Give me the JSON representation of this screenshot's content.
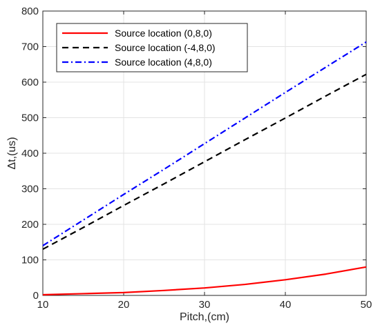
{
  "chart_data": {
    "type": "line",
    "xlabel": "Pitch,(cm)",
    "ylabel": "Δt,(us)",
    "xlim": [
      10,
      50
    ],
    "ylim": [
      0,
      800
    ],
    "xticks": [
      "10",
      "20",
      "30",
      "40",
      "50"
    ],
    "yticks": [
      "0",
      "100",
      "200",
      "300",
      "400",
      "500",
      "600",
      "700",
      "800"
    ],
    "grid": true,
    "legend_position": "top-left",
    "x": [
      10,
      15,
      20,
      25,
      30,
      35,
      40,
      45,
      50
    ],
    "series": [
      {
        "name": "Source location (0,8,0)",
        "color": "#ff0000",
        "style": "solid",
        "values": [
          2,
          5,
          8,
          14,
          21,
          31,
          44,
          60,
          80
        ]
      },
      {
        "name": "Source location (-4,8,0)",
        "color": "#000000",
        "style": "dashed",
        "values": [
          130,
          191,
          253,
          314,
          376,
          438,
          499,
          561,
          622
        ]
      },
      {
        "name": "Source location (4,8,0)",
        "color": "#0000ff",
        "style": "dashdot",
        "values": [
          140,
          212,
          284,
          355,
          427,
          499,
          571,
          642,
          713
        ]
      }
    ]
  }
}
